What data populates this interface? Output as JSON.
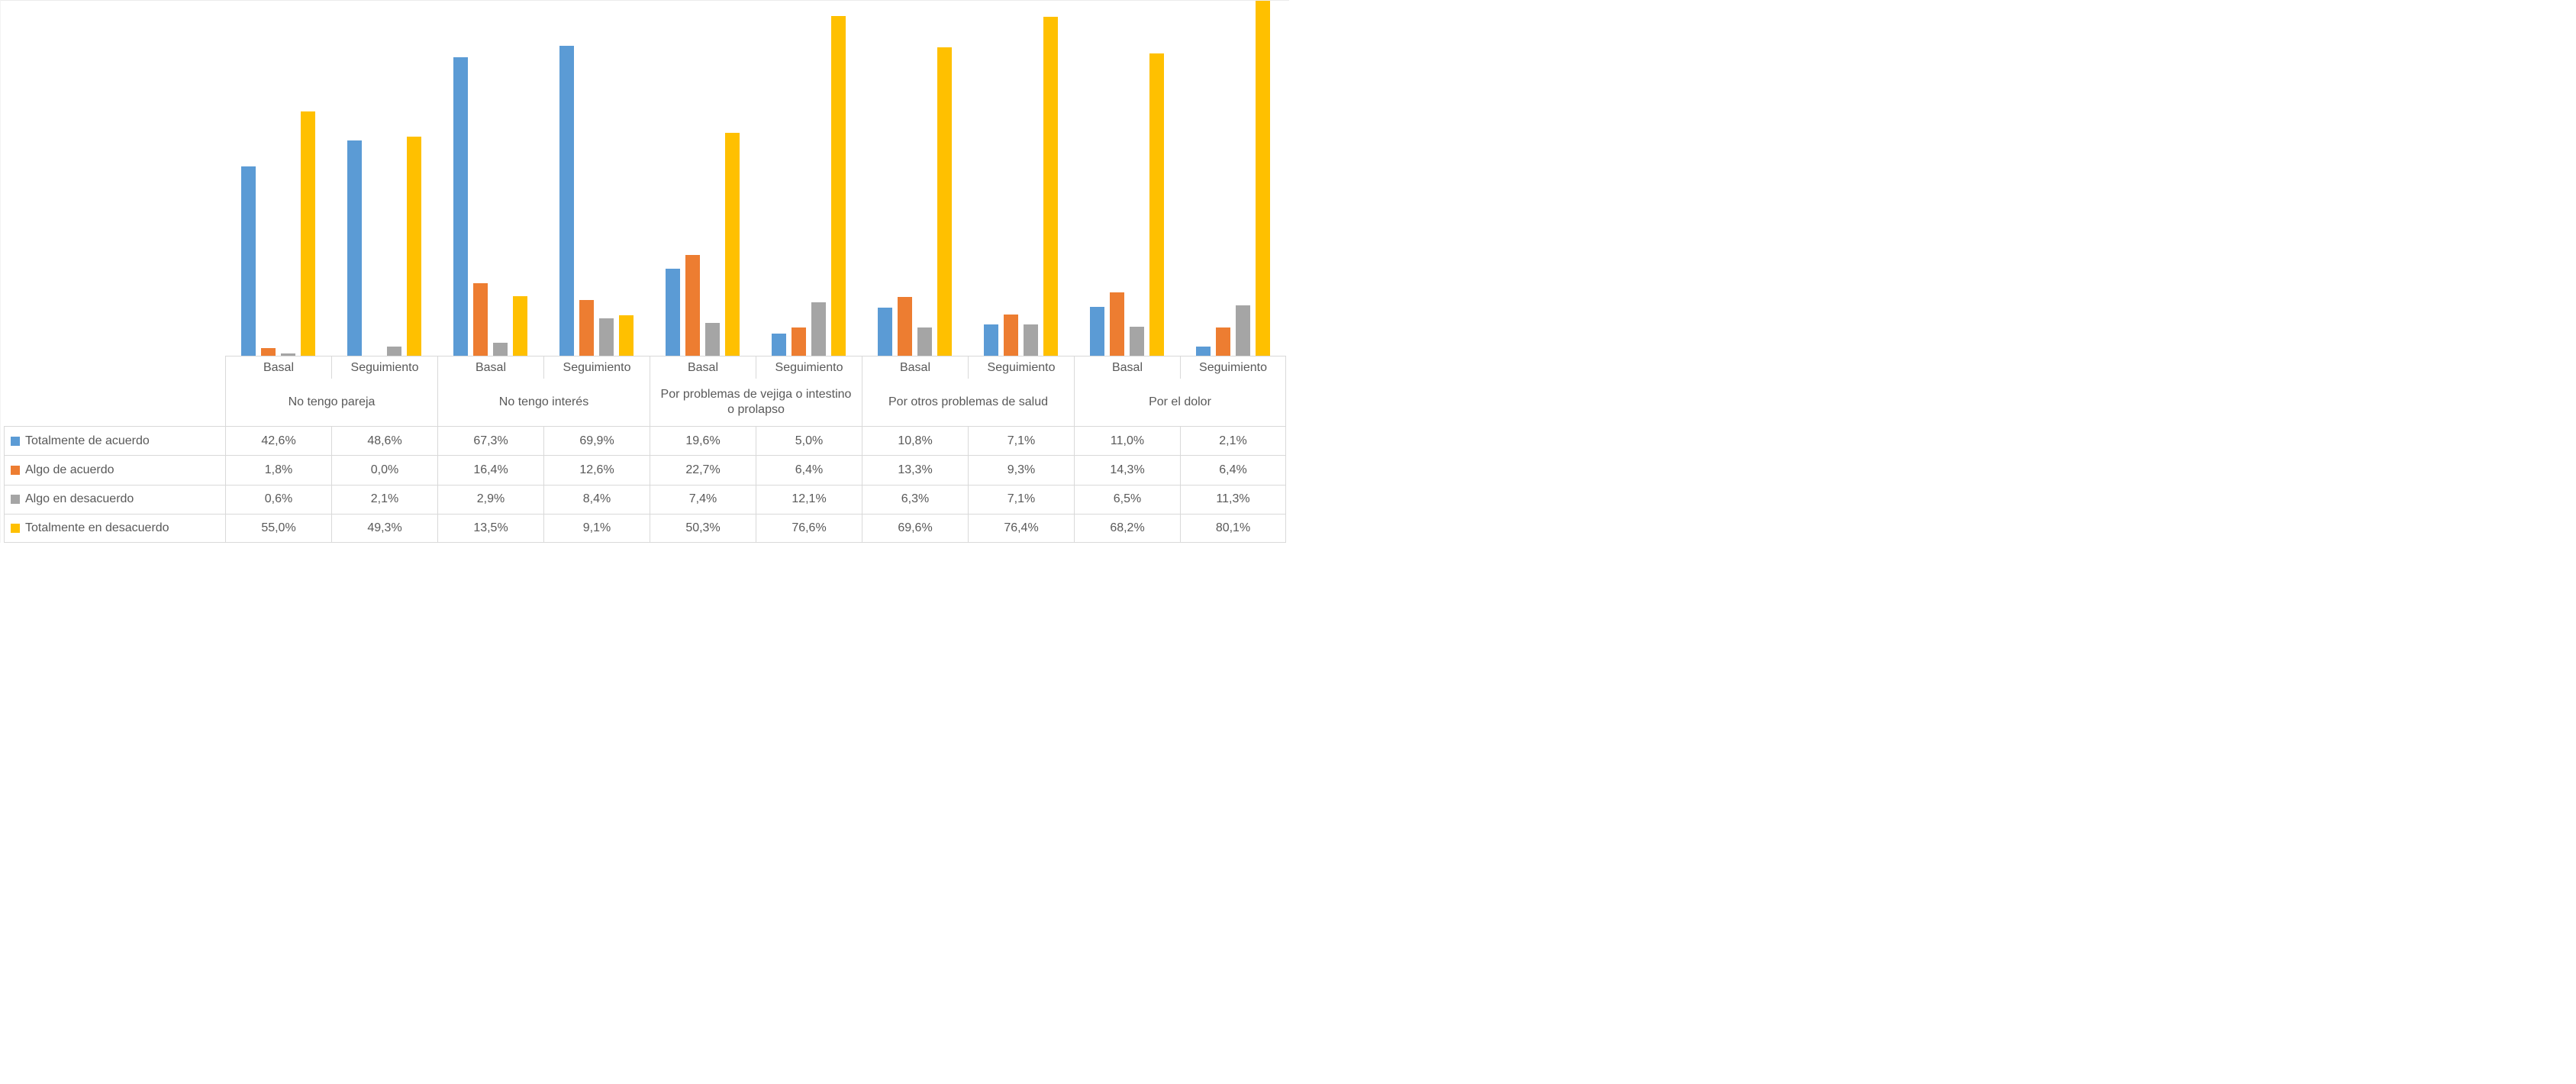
{
  "chart_data": {
    "type": "bar",
    "title": "",
    "xlabel": "",
    "ylabel": "",
    "ylim": [
      0,
      80
    ],
    "grid": false,
    "legend_position": "table-left",
    "value_format": {
      "decimal_separator": ",",
      "decimals": 1,
      "suffix": "%"
    },
    "axis_border_color": "#d9d9d9",
    "text_color": "#595959",
    "groups": [
      {
        "label": "No tengo pareja",
        "columns": [
          "Basal",
          "Seguimiento"
        ]
      },
      {
        "label": "No tengo interés",
        "columns": [
          "Basal",
          "Seguimiento"
        ]
      },
      {
        "label": "Por problemas de vejiga o intestino o prolapso",
        "columns": [
          "Basal",
          "Seguimiento"
        ]
      },
      {
        "label": "Por otros problemas de salud",
        "columns": [
          "Basal",
          "Seguimiento"
        ]
      },
      {
        "label": "Por el dolor",
        "columns": [
          "Basal",
          "Seguimiento"
        ]
      }
    ],
    "series": [
      {
        "name": "Totalmente de acuerdo",
        "color": "#5B9BD5",
        "values": [
          42.6,
          48.6,
          67.3,
          69.9,
          19.6,
          5.0,
          10.8,
          7.1,
          11.0,
          2.1
        ]
      },
      {
        "name": "Algo de acuerdo",
        "color": "#ED7D31",
        "values": [
          1.8,
          0.0,
          16.4,
          12.6,
          22.7,
          6.4,
          13.3,
          9.3,
          14.3,
          6.4
        ]
      },
      {
        "name": "Algo en desacuerdo",
        "color": "#A5A5A5",
        "values": [
          0.6,
          2.1,
          2.9,
          8.4,
          7.4,
          12.1,
          6.3,
          7.1,
          6.5,
          11.3
        ]
      },
      {
        "name": "Totalmente en desacuerdo",
        "color": "#FFC000",
        "values": [
          55.0,
          49.3,
          13.5,
          9.1,
          50.3,
          76.6,
          69.6,
          76.4,
          68.2,
          80.1
        ]
      }
    ]
  }
}
